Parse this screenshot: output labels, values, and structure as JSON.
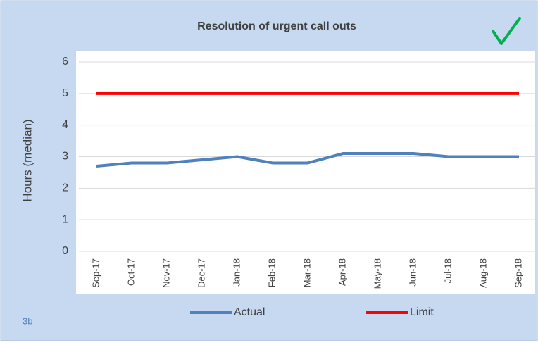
{
  "chart_data": {
    "type": "line",
    "title": "Resolution of urgent call outs",
    "label": "3b",
    "ylabel": "Hours (median)",
    "categories": [
      "Sep-17",
      "Oct-17",
      "Nov-17",
      "Dec-17",
      "Jan-18",
      "Feb-18",
      "Mar-18",
      "Apr-18",
      "May-18",
      "Jun-18",
      "Jul-18",
      "Aug-18",
      "Sep-18"
    ],
    "series": [
      {
        "name": "Actual",
        "color": "#4f81bd",
        "values": [
          2.7,
          2.8,
          2.8,
          2.9,
          3.0,
          2.8,
          2.8,
          3.1,
          3.1,
          3.1,
          3.0,
          3.0,
          3.0
        ]
      },
      {
        "name": "Limit",
        "color": "#ff0000",
        "values": [
          5,
          5,
          5,
          5,
          5,
          5,
          5,
          5,
          5,
          5,
          5,
          5,
          5
        ]
      }
    ],
    "ylim": [
      0,
      6
    ],
    "yticks": [
      0,
      1,
      2,
      3,
      4,
      5,
      6
    ],
    "grid": true,
    "legend": "bottom"
  }
}
